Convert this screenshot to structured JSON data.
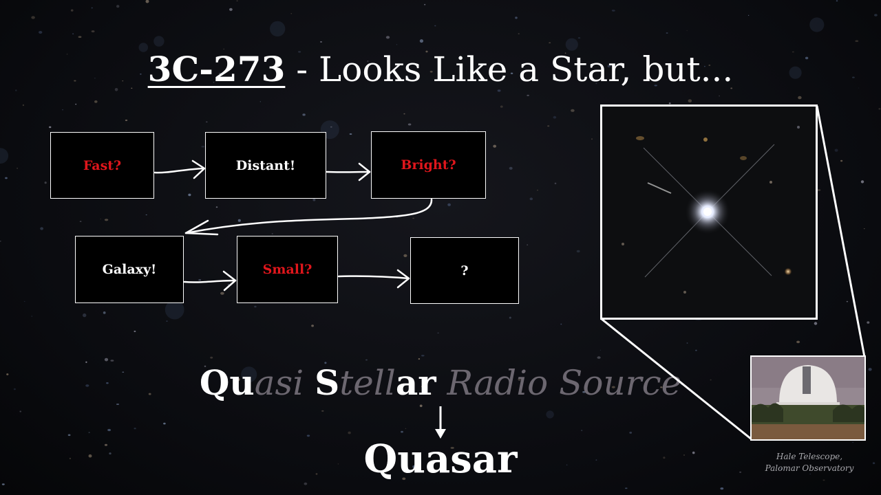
{
  "title": {
    "strong": "3C-273",
    "rest": " - Looks Like a Star, but..."
  },
  "flow": {
    "boxes": [
      {
        "label": "Fast?",
        "color": "#e0161c"
      },
      {
        "label": "Distant!",
        "color": "#ffffff"
      },
      {
        "label": "Bright?",
        "color": "#e0161c"
      },
      {
        "label": "Galaxy!",
        "color": "#ffffff"
      },
      {
        "label": "Small?",
        "color": "#e0161c"
      },
      {
        "label": "?",
        "color": "#ffffff"
      }
    ]
  },
  "acronym": {
    "parts": [
      {
        "text": "Qu",
        "highlight": true
      },
      {
        "text": "asi ",
        "highlight": false
      },
      {
        "text": "S",
        "highlight": true
      },
      {
        "text": "tell",
        "highlight": false
      },
      {
        "text": "ar",
        "highlight": true
      },
      {
        "text": " Radio Source",
        "highlight": false
      }
    ],
    "result": "Quasar"
  },
  "images": {
    "zoom_icon": "quasar-star-image",
    "photo_icon": "observatory-dome-photo",
    "caption_line1": "Hale Telescope,",
    "caption_line2": "Palomar Observatory"
  }
}
